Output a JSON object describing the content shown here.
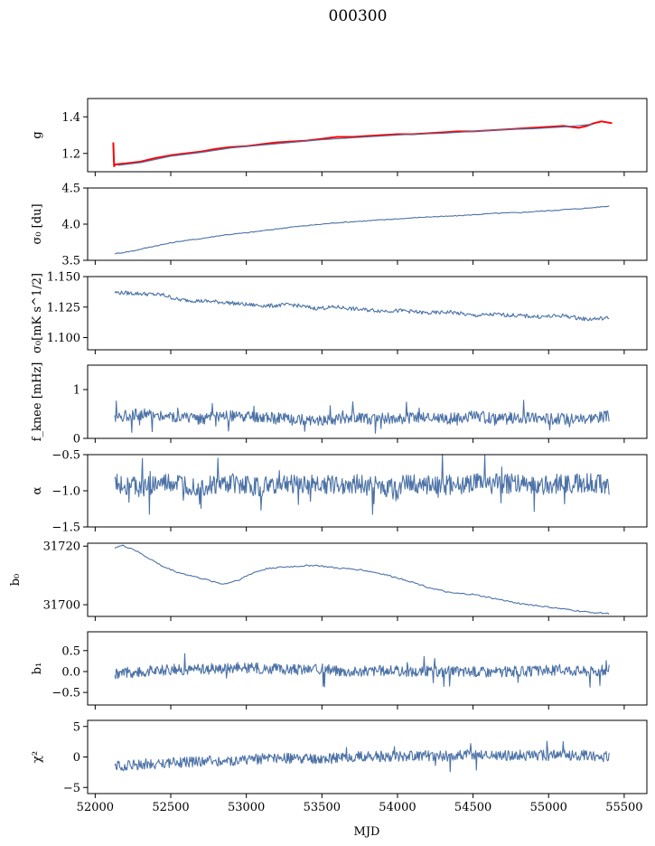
{
  "figure": {
    "title": "000300",
    "xlabel": "MJD"
  },
  "colors": {
    "series": "#4c72a6",
    "highlight": "#ff0000",
    "axes": "#000000"
  },
  "chart_data": [
    {
      "id": "g",
      "type": "line",
      "ylabel": "g",
      "xlim": [
        51950,
        55650
      ],
      "ylim": [
        1.1,
        1.5
      ],
      "grid": false,
      "x_ticks": [
        52000,
        52500,
        53000,
        53500,
        54000,
        54500,
        55000,
        55500
      ],
      "y_ticks": [
        1.2,
        1.4
      ],
      "y_tick_labels": [
        "1.2",
        "1.4"
      ],
      "series": [
        {
          "color": "#ff0000",
          "x": [
            52120,
            52125,
            52135,
            52200,
            52300,
            52400,
            52500,
            52600,
            52700,
            52800,
            52900,
            53000,
            53100,
            53200,
            53300,
            53400,
            53500,
            53600,
            53700,
            53800,
            53900,
            54000,
            54100,
            54200,
            54300,
            54400,
            54500,
            54600,
            54700,
            54800,
            54900,
            55000,
            55100,
            55150,
            55200,
            55250,
            55300,
            55350,
            55420
          ],
          "y": [
            1.26,
            1.13,
            1.14,
            1.145,
            1.155,
            1.175,
            1.19,
            1.2,
            1.21,
            1.225,
            1.235,
            1.24,
            1.25,
            1.26,
            1.265,
            1.27,
            1.28,
            1.29,
            1.29,
            1.295,
            1.3,
            1.305,
            1.305,
            1.31,
            1.315,
            1.32,
            1.32,
            1.325,
            1.33,
            1.335,
            1.34,
            1.345,
            1.35,
            1.345,
            1.34,
            1.35,
            1.365,
            1.375,
            1.365
          ]
        },
        {
          "color": "#4c72a6",
          "x": [
            52150,
            52300,
            52500,
            52700,
            52900,
            53100,
            53300,
            53500,
            53700,
            53900,
            54100,
            54300,
            54500,
            54700,
            54900,
            55100,
            55300
          ],
          "y": [
            1.135,
            1.15,
            1.185,
            1.205,
            1.23,
            1.245,
            1.26,
            1.275,
            1.285,
            1.295,
            1.305,
            1.31,
            1.32,
            1.33,
            1.335,
            1.345,
            1.36
          ]
        }
      ]
    },
    {
      "id": "sigma0-du",
      "type": "line",
      "ylabel": "σ₀ [du]",
      "xlim": [
        51950,
        55650
      ],
      "ylim": [
        3.5,
        4.5
      ],
      "grid": false,
      "x_ticks": [
        52000,
        52500,
        53000,
        53500,
        54000,
        54500,
        55000,
        55500
      ],
      "y_ticks": [
        3.5,
        4.0,
        4.5
      ],
      "y_tick_labels": [
        "3.5",
        "4.0",
        "4.5"
      ],
      "series": [
        {
          "color": "#4c72a6",
          "x": [
            52130,
            52250,
            52400,
            52550,
            52700,
            52850,
            53000,
            53150,
            53300,
            53450,
            53600,
            53750,
            53900,
            54050,
            54200,
            54350,
            54500,
            54650,
            54800,
            54950,
            55100,
            55250,
            55400
          ],
          "y": [
            3.59,
            3.63,
            3.7,
            3.76,
            3.8,
            3.85,
            3.88,
            3.92,
            3.96,
            3.99,
            4.02,
            4.04,
            4.06,
            4.08,
            4.1,
            4.11,
            4.13,
            4.15,
            4.16,
            4.18,
            4.2,
            4.22,
            4.25
          ]
        }
      ]
    },
    {
      "id": "sigma0-mks",
      "type": "line",
      "ylabel": "σ₀[mK s^1/2]",
      "xlim": [
        51950,
        55650
      ],
      "ylim": [
        1.09,
        1.15
      ],
      "grid": false,
      "x_ticks": [
        52000,
        52500,
        53000,
        53500,
        54000,
        54500,
        55000,
        55500
      ],
      "y_ticks": [
        1.1,
        1.125,
        1.15
      ],
      "y_tick_labels": [
        "1.100",
        "1.125",
        "1.150"
      ],
      "series": [
        {
          "color": "#4c72a6",
          "x": [
            52130,
            52300,
            52450,
            52550,
            52700,
            52850,
            53000,
            53150,
            53300,
            53450,
            53600,
            53750,
            53900,
            54050,
            54200,
            54350,
            54500,
            54650,
            54800,
            54950,
            55100,
            55250,
            55400
          ],
          "y": [
            1.137,
            1.136,
            1.135,
            1.131,
            1.13,
            1.129,
            1.127,
            1.126,
            1.127,
            1.124,
            1.125,
            1.123,
            1.122,
            1.122,
            1.12,
            1.121,
            1.118,
            1.119,
            1.118,
            1.117,
            1.118,
            1.115,
            1.116
          ]
        }
      ]
    },
    {
      "id": "fknee",
      "type": "line",
      "ylabel": "f_knee [mHz]",
      "xlim": [
        51950,
        55650
      ],
      "ylim": [
        0,
        1.5
      ],
      "grid": false,
      "x_ticks": [
        52000,
        52500,
        53000,
        53500,
        54000,
        54500,
        55000,
        55500
      ],
      "y_ticks": [
        0,
        1
      ],
      "y_tick_labels": [
        "0",
        "1"
      ],
      "series": [
        {
          "color": "#4c72a6",
          "x": [
            52130,
            52300,
            52500,
            52700,
            52900,
            53100,
            53300,
            53500,
            53700,
            53900,
            54100,
            54300,
            54500,
            54700,
            54900,
            55100,
            55300,
            55400
          ],
          "y": [
            0.45,
            0.5,
            0.45,
            0.4,
            0.45,
            0.42,
            0.4,
            0.38,
            0.42,
            0.4,
            0.42,
            0.4,
            0.45,
            0.4,
            0.42,
            0.4,
            0.43,
            0.45
          ]
        }
      ]
    },
    {
      "id": "alpha",
      "type": "line",
      "ylabel": "α",
      "xlim": [
        51950,
        55650
      ],
      "ylim": [
        -1.5,
        -0.5
      ],
      "grid": false,
      "x_ticks": [
        52000,
        52500,
        53000,
        53500,
        54000,
        54500,
        55000,
        55500
      ],
      "y_ticks": [
        -1.5,
        -1.0,
        -0.5
      ],
      "y_tick_labels": [
        "−1.5",
        "−1.0",
        "−0.5"
      ],
      "series": [
        {
          "color": "#4c72a6",
          "x": [
            52130,
            52300,
            52500,
            52700,
            52900,
            53100,
            53300,
            53500,
            53700,
            53900,
            54100,
            54300,
            54500,
            54700,
            54900,
            55100,
            55300,
            55400
          ],
          "y": [
            -0.9,
            -0.95,
            -0.9,
            -0.95,
            -0.9,
            -0.95,
            -0.9,
            -0.92,
            -0.9,
            -0.95,
            -0.9,
            -0.92,
            -0.9,
            -0.9,
            -0.92,
            -0.9,
            -0.9,
            -0.92
          ]
        }
      ]
    },
    {
      "id": "b0",
      "type": "line",
      "ylabel": "b₀",
      "xlim": [
        51950,
        55650
      ],
      "ylim": [
        31696,
        31721
      ],
      "grid": false,
      "x_ticks": [
        52000,
        52500,
        53000,
        53500,
        54000,
        54500,
        55000,
        55500
      ],
      "y_ticks": [
        31700,
        31720
      ],
      "y_tick_labels": [
        "31700",
        "31720"
      ],
      "series": [
        {
          "color": "#4c72a6",
          "x": [
            52130,
            52180,
            52250,
            52350,
            52450,
            52550,
            52700,
            52850,
            52950,
            53050,
            53150,
            53300,
            53450,
            53600,
            53750,
            53900,
            54050,
            54200,
            54350,
            54500,
            54650,
            54800,
            54950,
            55100,
            55250,
            55400
          ],
          "y": [
            31719.5,
            31720.2,
            31719,
            31716,
            31713,
            31711,
            31709,
            31707,
            31708.5,
            31711,
            31712.5,
            31713,
            31713.5,
            31712.5,
            31712,
            31710.5,
            31708.5,
            31706,
            31704,
            31703.5,
            31702,
            31700.5,
            31699.5,
            31698.5,
            31697.5,
            31697
          ]
        }
      ]
    },
    {
      "id": "b1",
      "type": "line",
      "ylabel": "b₁",
      "xlim": [
        51950,
        55650
      ],
      "ylim": [
        -0.8,
        0.95
      ],
      "grid": false,
      "x_ticks": [
        52000,
        52500,
        53000,
        53500,
        54000,
        54500,
        55000,
        55500
      ],
      "y_ticks": [
        -0.5,
        0.0,
        0.5
      ],
      "y_tick_labels": [
        "−0.5",
        "0.0",
        "0.5"
      ],
      "series": [
        {
          "color": "#4c72a6",
          "x": [
            52130,
            52300,
            52500,
            52700,
            52900,
            53100,
            53300,
            53500,
            53700,
            53900,
            54100,
            54300,
            54500,
            54700,
            54900,
            55100,
            55300,
            55400
          ],
          "y": [
            -0.05,
            0.0,
            0.05,
            0.05,
            0.1,
            0.08,
            0.05,
            0.05,
            0.0,
            0.03,
            0.0,
            0.0,
            0.0,
            0.0,
            0.0,
            0.05,
            0.0,
            0.05
          ]
        }
      ]
    },
    {
      "id": "chi2",
      "type": "line",
      "ylabel": "χ²",
      "xlim": [
        51950,
        55650
      ],
      "ylim": [
        -6,
        6
      ],
      "grid": false,
      "x_ticks": [
        52000,
        52500,
        53000,
        53500,
        54000,
        54500,
        55000,
        55500
      ],
      "x_tick_labels": [
        "52000",
        "52500",
        "53000",
        "53500",
        "54000",
        "54500",
        "55000",
        "55500"
      ],
      "y_ticks": [
        -5,
        0,
        5
      ],
      "y_tick_labels": [
        "−5",
        "0",
        "5"
      ],
      "series": [
        {
          "color": "#4c72a6",
          "x": [
            52130,
            52300,
            52500,
            52700,
            52900,
            53100,
            53300,
            53500,
            53700,
            53900,
            54100,
            54300,
            54500,
            54700,
            54900,
            55100,
            55300,
            55400
          ],
          "y": [
            -1.5,
            -1.2,
            -1.0,
            -0.8,
            -0.5,
            -0.3,
            -0.2,
            -0.3,
            0.0,
            0.1,
            0.2,
            0.2,
            0.3,
            0.2,
            0.3,
            0.3,
            0.2,
            0.0
          ]
        }
      ]
    }
  ]
}
